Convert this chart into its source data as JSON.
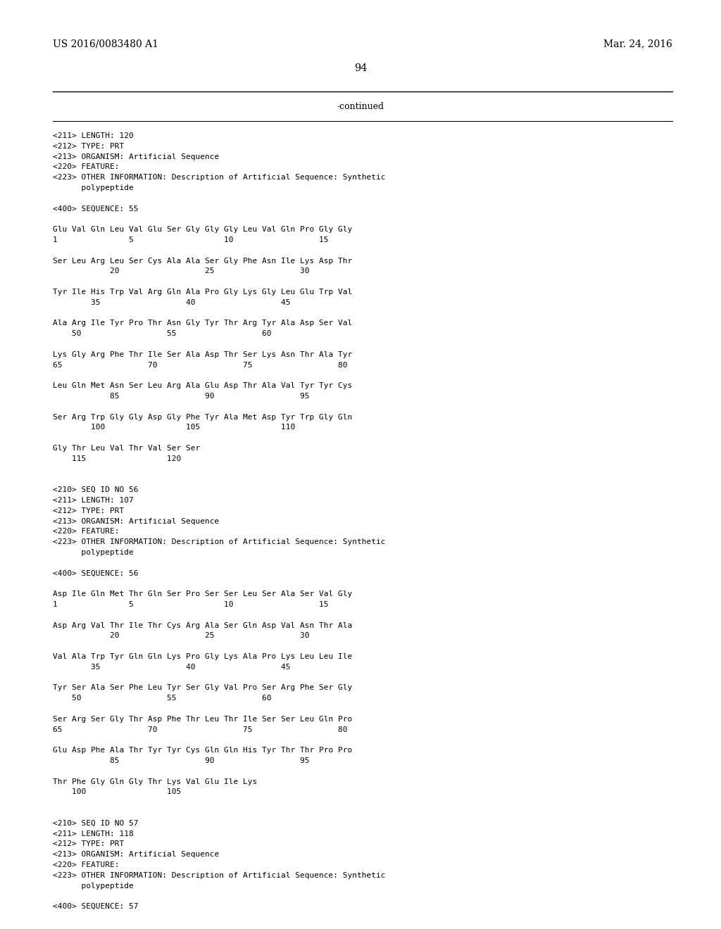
{
  "header_left": "US 2016/0083480 A1",
  "header_right": "Mar. 24, 2016",
  "page_number": "94",
  "continued_text": "-continued",
  "background_color": "#ffffff",
  "text_color": "#000000",
  "lines": [
    "<211> LENGTH: 120",
    "<212> TYPE: PRT",
    "<213> ORGANISM: Artificial Sequence",
    "<220> FEATURE:",
    "<223> OTHER INFORMATION: Description of Artificial Sequence: Synthetic",
    "      polypeptide",
    "",
    "<400> SEQUENCE: 55",
    "",
    "Glu Val Gln Leu Val Glu Ser Gly Gly Gly Leu Val Gln Pro Gly Gly",
    "1               5                   10                  15",
    "",
    "Ser Leu Arg Leu Ser Cys Ala Ala Ser Gly Phe Asn Ile Lys Asp Thr",
    "            20                  25                  30",
    "",
    "Tyr Ile His Trp Val Arg Gln Ala Pro Gly Lys Gly Leu Glu Trp Val",
    "        35                  40                  45",
    "",
    "Ala Arg Ile Tyr Pro Thr Asn Gly Tyr Thr Arg Tyr Ala Asp Ser Val",
    "    50                  55                  60",
    "",
    "Lys Gly Arg Phe Thr Ile Ser Ala Asp Thr Ser Lys Asn Thr Ala Tyr",
    "65                  70                  75                  80",
    "",
    "Leu Gln Met Asn Ser Leu Arg Ala Glu Asp Thr Ala Val Tyr Tyr Cys",
    "            85                  90                  95",
    "",
    "Ser Arg Trp Gly Gly Asp Gly Phe Tyr Ala Met Asp Tyr Trp Gly Gln",
    "        100                 105                 110",
    "",
    "Gly Thr Leu Val Thr Val Ser Ser",
    "    115                 120",
    "",
    "",
    "<210> SEQ ID NO 56",
    "<211> LENGTH: 107",
    "<212> TYPE: PRT",
    "<213> ORGANISM: Artificial Sequence",
    "<220> FEATURE:",
    "<223> OTHER INFORMATION: Description of Artificial Sequence: Synthetic",
    "      polypeptide",
    "",
    "<400> SEQUENCE: 56",
    "",
    "Asp Ile Gln Met Thr Gln Ser Pro Ser Ser Leu Ser Ala Ser Val Gly",
    "1               5                   10                  15",
    "",
    "Asp Arg Val Thr Ile Thr Cys Arg Ala Ser Gln Asp Val Asn Thr Ala",
    "            20                  25                  30",
    "",
    "Val Ala Trp Tyr Gln Gln Lys Pro Gly Lys Ala Pro Lys Leu Leu Ile",
    "        35                  40                  45",
    "",
    "Tyr Ser Ala Ser Phe Leu Tyr Ser Gly Val Pro Ser Arg Phe Ser Gly",
    "    50                  55                  60",
    "",
    "Ser Arg Ser Gly Thr Asp Phe Thr Leu Thr Ile Ser Ser Leu Gln Pro",
    "65                  70                  75                  80",
    "",
    "Glu Asp Phe Ala Thr Tyr Tyr Cys Gln Gln His Tyr Thr Thr Pro Pro",
    "            85                  90                  95",
    "",
    "Thr Phe Gly Gln Gly Thr Lys Val Glu Ile Lys",
    "    100                 105",
    "",
    "",
    "<210> SEQ ID NO 57",
    "<211> LENGTH: 118",
    "<212> TYPE: PRT",
    "<213> ORGANISM: Artificial Sequence",
    "<220> FEATURE:",
    "<223> OTHER INFORMATION: Description of Artificial Sequence: Synthetic",
    "      polypeptide",
    "",
    "<400> SEQUENCE: 57"
  ]
}
